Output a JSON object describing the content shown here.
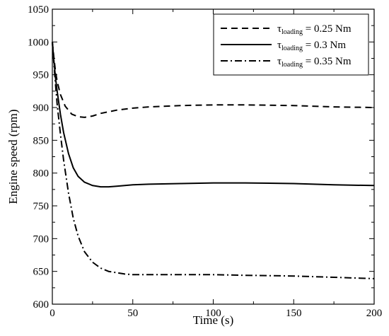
{
  "chart_data": {
    "type": "line",
    "xlabel": "Time (s)",
    "ylabel": "Engine speed (rpm)",
    "xlim": [
      0,
      200
    ],
    "ylim": [
      600,
      1050
    ],
    "x_ticks": [
      "0",
      "50",
      "100",
      "150",
      "200"
    ],
    "y_ticks": [
      "600",
      "650",
      "700",
      "750",
      "800",
      "850",
      "900",
      "950",
      "1000",
      "1050"
    ],
    "grid": false,
    "legend_position": "top-right",
    "series": [
      {
        "name_prefix": "τ",
        "name_sub": "loading",
        "name_suffix": " = 0.25 Nm",
        "dash": "dashed",
        "x": [
          0,
          1,
          2,
          3,
          5,
          8,
          12,
          16,
          20,
          25,
          30,
          40,
          50,
          60,
          80,
          100,
          120,
          150,
          175,
          200
        ],
        "y": [
          1000,
          975,
          955,
          940,
          920,
          902,
          890,
          886,
          885,
          887,
          891,
          896,
          899,
          901,
          903,
          904,
          904,
          903,
          901,
          900
        ]
      },
      {
        "name_prefix": "τ",
        "name_sub": "loading",
        "name_suffix": " = 0.3 Nm",
        "dash": "solid",
        "x": [
          0,
          1,
          2,
          3,
          5,
          7,
          10,
          13,
          16,
          20,
          25,
          30,
          35,
          40,
          50,
          60,
          80,
          100,
          120,
          150,
          175,
          200
        ],
        "y": [
          1000,
          970,
          945,
          925,
          890,
          862,
          830,
          808,
          795,
          786,
          781,
          779,
          779,
          780,
          782,
          783,
          784,
          785,
          785,
          784,
          782,
          781
        ]
      },
      {
        "name_prefix": "τ",
        "name_sub": "loading",
        "name_suffix": " = 0.35 Nm",
        "dash": "dashdot",
        "x": [
          0,
          1,
          2,
          3,
          5,
          7,
          10,
          13,
          16,
          20,
          25,
          30,
          35,
          40,
          45,
          50,
          60,
          80,
          100,
          120,
          150,
          175,
          200
        ],
        "y": [
          1000,
          965,
          935,
          905,
          860,
          820,
          770,
          731,
          704,
          680,
          664,
          655,
          650,
          648,
          646,
          645,
          645,
          645,
          645,
          644,
          643,
          641,
          639
        ]
      }
    ]
  }
}
